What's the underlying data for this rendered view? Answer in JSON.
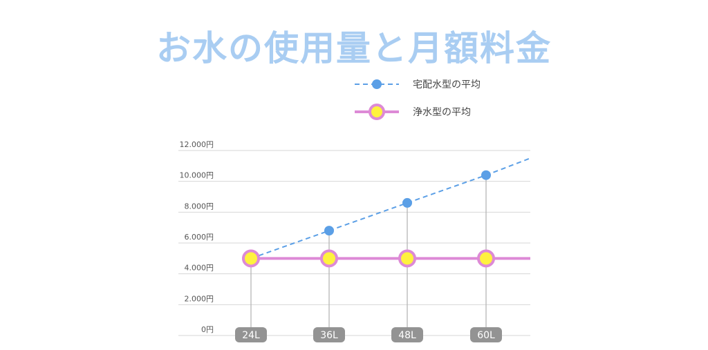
{
  "chart_data": {
    "type": "line",
    "title": "お水の使用量と月額料金",
    "categories": [
      "24L",
      "36L",
      "48L",
      "60L"
    ],
    "yticks": [
      "0円",
      "2.000円",
      "4.000円",
      "6.000円",
      "8.000円",
      "10.000円",
      "12.000円"
    ],
    "ylim": [
      0,
      12000
    ],
    "grid": true,
    "legend_position": "top-right",
    "series": [
      {
        "name": "宅配水型の平均",
        "values": [
          5000,
          6800,
          8600,
          10400
        ],
        "extend_to": 11500,
        "color": "#5b9fe6",
        "style": "dashed"
      },
      {
        "name": "浄水型の平均",
        "values": [
          5000,
          5000,
          5000,
          5000
        ],
        "extend_to": 5000,
        "color": "#dd8ad6",
        "marker_fill": "#fff23e",
        "style": "solid"
      }
    ]
  }
}
